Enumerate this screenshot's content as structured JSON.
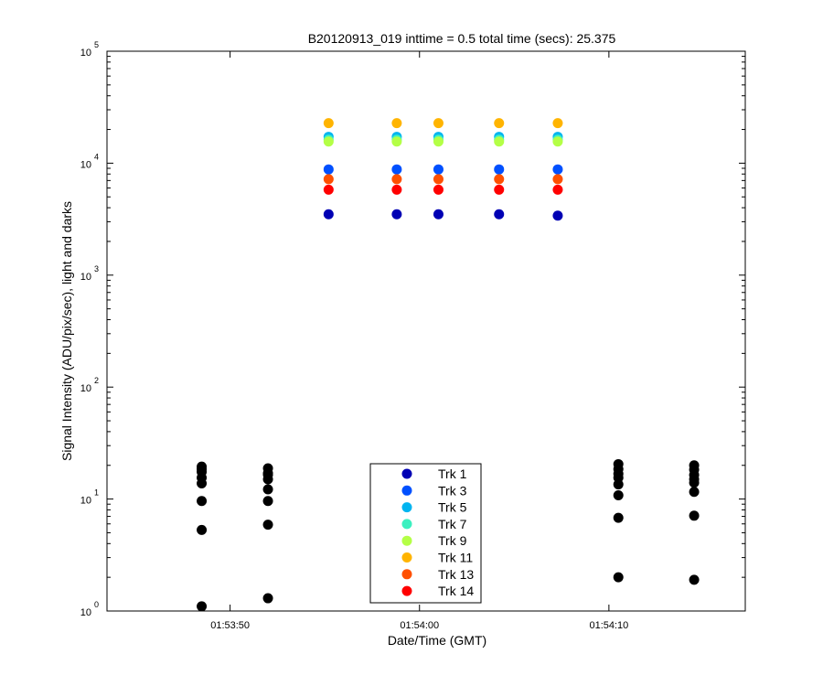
{
  "chart_data": {
    "type": "scatter",
    "title": "B20120913_019 inttime = 0.5 total time (secs): 25.375",
    "xlabel": "Date/Time (GMT)",
    "ylabel": "Signal Intensity (ADU/pix/sec), light and darks",
    "yscale": "log",
    "ylim": [
      1,
      100000
    ],
    "y_ticks": [
      {
        "base": "10",
        "exp": "0",
        "value": 1
      },
      {
        "base": "10",
        "exp": "1",
        "value": 10
      },
      {
        "base": "10",
        "exp": "2",
        "value": 100
      },
      {
        "base": "10",
        "exp": "3",
        "value": 1000
      },
      {
        "base": "10",
        "exp": "4",
        "value": 10000
      },
      {
        "base": "10",
        "exp": "5",
        "value": 100000
      }
    ],
    "xlim": [
      "01:53:43.5",
      "01:54:17.2"
    ],
    "x_ticks": [
      "01:53:50",
      "01:54:00",
      "01:54:10"
    ],
    "grid": false,
    "legend_position": "bottom-center",
    "series": [
      {
        "name": "Trk 1",
        "color": "#0000b4",
        "x": [
          "01:53:55.2",
          "01:53:58.8",
          "01:54:01.0",
          "01:54:04.2",
          "01:54:07.3"
        ],
        "y": [
          3500,
          3500,
          3500,
          3500,
          3400
        ]
      },
      {
        "name": "Trk 3",
        "color": "#0050ff",
        "x": [
          "01:53:55.2",
          "01:53:58.8",
          "01:54:01.0",
          "01:54:04.2",
          "01:54:07.3"
        ],
        "y": [
          8800,
          8800,
          8800,
          8800,
          8800
        ]
      },
      {
        "name": "Trk 5",
        "color": "#00b4f0",
        "x": [
          "01:53:55.2",
          "01:53:58.8",
          "01:54:01.0",
          "01:54:04.2",
          "01:54:07.3"
        ],
        "y": [
          17200,
          17200,
          17200,
          17200,
          17200
        ]
      },
      {
        "name": "Trk 7",
        "color": "#3cf0c0",
        "x": [
          "01:53:55.2",
          "01:53:58.8",
          "01:54:01.0",
          "01:54:04.2",
          "01:54:07.3"
        ],
        "y": [
          16200,
          16200,
          16200,
          16200,
          16200
        ]
      },
      {
        "name": "Trk 9",
        "color": "#b4ff46",
        "x": [
          "01:53:55.2",
          "01:53:58.8",
          "01:54:01.0",
          "01:54:04.2",
          "01:54:07.3"
        ],
        "y": [
          15600,
          15600,
          15600,
          15600,
          15600
        ]
      },
      {
        "name": "Trk 11",
        "color": "#ffb400",
        "x": [
          "01:53:55.2",
          "01:53:58.8",
          "01:54:01.0",
          "01:54:04.2",
          "01:54:07.3"
        ],
        "y": [
          22800,
          22800,
          22800,
          22800,
          22800
        ]
      },
      {
        "name": "Trk 13",
        "color": "#ff5000",
        "x": [
          "01:53:55.2",
          "01:53:58.8",
          "01:54:01.0",
          "01:54:04.2",
          "01:54:07.3"
        ],
        "y": [
          7200,
          7200,
          7200,
          7200,
          7200
        ]
      },
      {
        "name": "Trk 14",
        "color": "#ff0000",
        "x": [
          "01:53:55.2",
          "01:53:58.8",
          "01:54:01.0",
          "01:54:04.2",
          "01:54:07.3"
        ],
        "y": [
          5800,
          5800,
          5800,
          5800,
          5800
        ]
      }
    ],
    "dark_points": {
      "color": "#000000",
      "x": [
        "01:53:48.5",
        "01:53:48.5",
        "01:53:48.5",
        "01:53:48.5",
        "01:53:48.5",
        "01:53:48.5",
        "01:53:48.5",
        "01:53:48.5",
        "01:53:52.0",
        "01:53:52.0",
        "01:53:52.0",
        "01:53:52.0",
        "01:53:52.0",
        "01:53:52.0",
        "01:53:52.0",
        "01:53:52.0",
        "01:54:10.5",
        "01:54:10.5",
        "01:54:10.5",
        "01:54:10.5",
        "01:54:10.5",
        "01:54:10.5",
        "01:54:10.5",
        "01:54:10.5",
        "01:54:14.5",
        "01:54:14.5",
        "01:54:14.5",
        "01:54:14.5",
        "01:54:14.5",
        "01:54:14.5",
        "01:54:14.5",
        "01:54:14.5"
      ],
      "y": [
        19.5,
        17.5,
        15.5,
        13.8,
        9.6,
        5.3,
        1.1,
        18.5,
        18.8,
        17.0,
        15.0,
        12.2,
        9.6,
        5.9,
        1.3,
        16.5,
        20.5,
        18.5,
        16.8,
        13.5,
        10.8,
        6.8,
        2.0,
        15.5,
        20.0,
        18.3,
        16.4,
        14.0,
        11.6,
        7.1,
        1.9,
        15.0
      ]
    }
  }
}
